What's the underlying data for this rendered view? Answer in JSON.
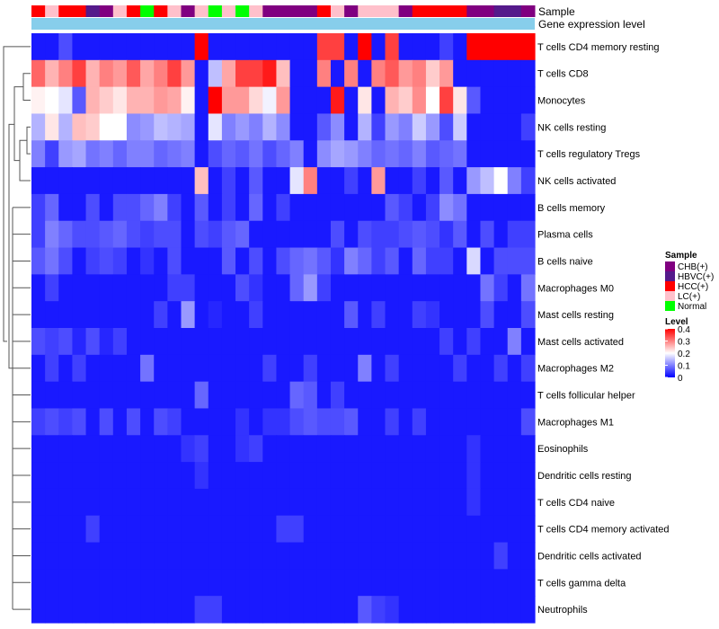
{
  "chart_data": {
    "type": "heatmap",
    "annotation_labels": {
      "sample": "Sample",
      "gene_level": "Gene expression level"
    },
    "row_labels": [
      "T cells CD4 memory resting",
      "T cells CD8",
      "Monocytes",
      "NK cells resting",
      "T cells regulatory  Tregs",
      "NK cells activated",
      "B cells memory",
      "Plasma cells",
      "B cells naive",
      "Macrophages M0",
      "Mast cells resting",
      "Mast cells activated",
      "Macrophages M2",
      "T cells follicular helper",
      "Macrophages M1",
      "Eosinophils",
      "Dendritic cells resting",
      "T cells CD4 naive",
      "T cells CD4 memory activated",
      "Dendritic cells activated",
      "T cells gamma delta",
      "Neutrophils"
    ],
    "sample_groups": [
      "HCC(+)",
      "LC(+)",
      "HCC(+)",
      "HCC(+)",
      "HBVC(+)",
      "CHB(+)",
      "LC(+)",
      "HCC(+)",
      "Normal",
      "HCC(+)",
      "LC(+)",
      "CHB(+)",
      "LC(+)",
      "Normal",
      "LC(+)",
      "Normal",
      "LC(+)",
      "CHB(+)",
      "CHB(+)",
      "CHB(+)",
      "CHB(+)",
      "HCC(+)",
      "LC(+)",
      "CHB(+)",
      "LC(+)",
      "LC(+)",
      "LC(+)",
      "CHB(+)",
      "HCC(+)",
      "HCC(+)",
      "HCC(+)",
      "HCC(+)",
      "CHB(+)",
      "CHB(+)",
      "HBVC(+)",
      "HBVC(+)",
      "CHB(+)"
    ],
    "values": [
      [
        0.02,
        0.02,
        0.06,
        0.02,
        0.02,
        0.02,
        0.02,
        0.02,
        0.02,
        0.02,
        0.02,
        0.02,
        0.4,
        0.02,
        0.02,
        0.02,
        0.02,
        0.02,
        0.02,
        0.02,
        0.02,
        0.35,
        0.35,
        0.02,
        0.4,
        0.02,
        0.35,
        0.02,
        0.02,
        0.02,
        0.05,
        0.02,
        0.4,
        0.4,
        0.4,
        0.4,
        0.4
      ],
      [
        0.32,
        0.26,
        0.3,
        0.35,
        0.26,
        0.3,
        0.28,
        0.33,
        0.27,
        0.3,
        0.35,
        0.28,
        0.02,
        0.15,
        0.27,
        0.35,
        0.35,
        0.38,
        0.25,
        0.02,
        0.02,
        0.3,
        0.02,
        0.3,
        0.02,
        0.3,
        0.33,
        0.28,
        0.3,
        0.24,
        0.28,
        0.02,
        0.02,
        0.02,
        0.02,
        0.02,
        0.02
      ],
      [
        0.21,
        0.2,
        0.18,
        0.07,
        0.26,
        0.24,
        0.22,
        0.26,
        0.26,
        0.28,
        0.27,
        0.21,
        0.02,
        0.4,
        0.28,
        0.28,
        0.23,
        0.19,
        0.28,
        0.02,
        0.02,
        0.02,
        0.38,
        0.02,
        0.22,
        0.02,
        0.26,
        0.24,
        0.29,
        0.2,
        0.35,
        0.22,
        0.07,
        0.02,
        0.02,
        0.02,
        0.02
      ],
      [
        0.14,
        0.22,
        0.14,
        0.25,
        0.24,
        0.2,
        0.2,
        0.11,
        0.12,
        0.15,
        0.14,
        0.13,
        0.02,
        0.18,
        0.1,
        0.12,
        0.1,
        0.14,
        0.11,
        0.02,
        0.02,
        0.07,
        0.11,
        0.02,
        0.14,
        0.05,
        0.12,
        0.1,
        0.16,
        0.12,
        0.06,
        0.16,
        0.02,
        0.02,
        0.02,
        0.02,
        0.05
      ],
      [
        0.1,
        0.05,
        0.12,
        0.13,
        0.09,
        0.1,
        0.08,
        0.1,
        0.1,
        0.08,
        0.09,
        0.1,
        0.02,
        0.06,
        0.08,
        0.07,
        0.09,
        0.06,
        0.08,
        0.1,
        0.02,
        0.11,
        0.13,
        0.12,
        0.1,
        0.08,
        0.09,
        0.08,
        0.1,
        0.07,
        0.08,
        0.09,
        0.02,
        0.02,
        0.02,
        0.02,
        0.02
      ],
      [
        0.02,
        0.02,
        0.02,
        0.02,
        0.02,
        0.02,
        0.02,
        0.02,
        0.02,
        0.02,
        0.02,
        0.02,
        0.25,
        0.02,
        0.05,
        0.02,
        0.07,
        0.02,
        0.02,
        0.18,
        0.3,
        0.02,
        0.02,
        0.05,
        0.02,
        0.28,
        0.02,
        0.02,
        0.05,
        0.02,
        0.07,
        0.02,
        0.12,
        0.15,
        0.2,
        0.1,
        0.05
      ],
      [
        0.05,
        0.08,
        0.02,
        0.02,
        0.06,
        0.02,
        0.06,
        0.06,
        0.08,
        0.1,
        0.05,
        0.02,
        0.07,
        0.02,
        0.05,
        0.02,
        0.08,
        0.02,
        0.05,
        0.02,
        0.02,
        0.02,
        0.02,
        0.02,
        0.02,
        0.02,
        0.07,
        0.05,
        0.02,
        0.05,
        0.11,
        0.09,
        0.02,
        0.02,
        0.02,
        0.02,
        0.02
      ],
      [
        0.05,
        0.1,
        0.08,
        0.06,
        0.06,
        0.07,
        0.08,
        0.06,
        0.05,
        0.06,
        0.06,
        0.02,
        0.06,
        0.05,
        0.07,
        0.08,
        0.02,
        0.02,
        0.02,
        0.02,
        0.02,
        0.02,
        0.06,
        0.02,
        0.06,
        0.05,
        0.05,
        0.06,
        0.07,
        0.06,
        0.04,
        0.07,
        0.02,
        0.06,
        0.02,
        0.05,
        0.05
      ],
      [
        0.07,
        0.09,
        0.06,
        0.02,
        0.05,
        0.06,
        0.05,
        0.02,
        0.04,
        0.02,
        0.06,
        0.02,
        0.02,
        0.02,
        0.07,
        0.02,
        0.06,
        0.02,
        0.06,
        0.08,
        0.09,
        0.07,
        0.04,
        0.1,
        0.08,
        0.05,
        0.07,
        0.02,
        0.08,
        0.05,
        0.05,
        0.02,
        0.17,
        0.02,
        0.06,
        0.06,
        0.06
      ],
      [
        0.02,
        0.05,
        0.02,
        0.02,
        0.02,
        0.02,
        0.02,
        0.02,
        0.02,
        0.02,
        0.05,
        0.05,
        0.02,
        0.02,
        0.02,
        0.06,
        0.04,
        0.02,
        0.02,
        0.08,
        0.12,
        0.05,
        0.02,
        0.02,
        0.02,
        0.02,
        0.02,
        0.02,
        0.02,
        0.02,
        0.02,
        0.02,
        0.02,
        0.09,
        0.05,
        0.02,
        0.09
      ],
      [
        0.02,
        0.02,
        0.02,
        0.02,
        0.02,
        0.02,
        0.02,
        0.02,
        0.02,
        0.05,
        0.02,
        0.12,
        0.02,
        0.03,
        0.02,
        0.02,
        0.05,
        0.02,
        0.02,
        0.02,
        0.02,
        0.02,
        0.02,
        0.07,
        0.02,
        0.05,
        0.02,
        0.02,
        0.05,
        0.04,
        0.02,
        0.02,
        0.02,
        0.06,
        0.02,
        0.02,
        0.06
      ],
      [
        0.06,
        0.05,
        0.06,
        0.03,
        0.06,
        0.03,
        0.05,
        0.02,
        0.02,
        0.02,
        0.02,
        0.02,
        0.02,
        0.02,
        0.02,
        0.02,
        0.02,
        0.02,
        0.02,
        0.02,
        0.02,
        0.02,
        0.02,
        0.02,
        0.02,
        0.02,
        0.02,
        0.02,
        0.02,
        0.02,
        0.05,
        0.02,
        0.05,
        0.02,
        0.02,
        0.1,
        0.02
      ],
      [
        0.02,
        0.05,
        0.02,
        0.05,
        0.02,
        0.02,
        0.02,
        0.02,
        0.09,
        0.02,
        0.02,
        0.02,
        0.02,
        0.02,
        0.02,
        0.02,
        0.02,
        0.05,
        0.02,
        0.02,
        0.05,
        0.02,
        0.02,
        0.02,
        0.1,
        0.02,
        0.05,
        0.02,
        0.02,
        0.02,
        0.02,
        0.05,
        0.02,
        0.02,
        0.05,
        0.02,
        0.05
      ],
      [
        0.02,
        0.02,
        0.02,
        0.02,
        0.02,
        0.02,
        0.02,
        0.02,
        0.02,
        0.02,
        0.02,
        0.02,
        0.08,
        0.02,
        0.02,
        0.02,
        0.02,
        0.02,
        0.02,
        0.08,
        0.07,
        0.02,
        0.05,
        0.02,
        0.02,
        0.02,
        0.02,
        0.02,
        0.02,
        0.02,
        0.02,
        0.02,
        0.02,
        0.02,
        0.02,
        0.02,
        0.02
      ],
      [
        0.05,
        0.06,
        0.05,
        0.06,
        0.02,
        0.06,
        0.02,
        0.06,
        0.02,
        0.06,
        0.05,
        0.02,
        0.02,
        0.02,
        0.02,
        0.04,
        0.02,
        0.04,
        0.04,
        0.06,
        0.07,
        0.06,
        0.06,
        0.07,
        0.02,
        0.02,
        0.05,
        0.02,
        0.05,
        0.02,
        0.02,
        0.02,
        0.02,
        0.02,
        0.02,
        0.02,
        0.06
      ],
      [
        0.02,
        0.02,
        0.02,
        0.02,
        0.02,
        0.02,
        0.02,
        0.02,
        0.02,
        0.02,
        0.02,
        0.04,
        0.05,
        0.02,
        0.02,
        0.04,
        0.05,
        0.02,
        0.02,
        0.02,
        0.02,
        0.02,
        0.02,
        0.02,
        0.02,
        0.02,
        0.02,
        0.02,
        0.02,
        0.02,
        0.02,
        0.02,
        0.04,
        0.02,
        0.02,
        0.02,
        0.02
      ],
      [
        0.02,
        0.02,
        0.02,
        0.02,
        0.02,
        0.02,
        0.02,
        0.02,
        0.02,
        0.02,
        0.02,
        0.02,
        0.04,
        0.02,
        0.02,
        0.02,
        0.02,
        0.02,
        0.02,
        0.02,
        0.02,
        0.02,
        0.02,
        0.02,
        0.02,
        0.02,
        0.02,
        0.02,
        0.02,
        0.02,
        0.02,
        0.02,
        0.04,
        0.02,
        0.02,
        0.02,
        0.02
      ],
      [
        0.02,
        0.02,
        0.02,
        0.02,
        0.02,
        0.02,
        0.02,
        0.02,
        0.02,
        0.02,
        0.02,
        0.02,
        0.02,
        0.02,
        0.02,
        0.02,
        0.02,
        0.02,
        0.02,
        0.02,
        0.02,
        0.02,
        0.02,
        0.02,
        0.02,
        0.02,
        0.02,
        0.02,
        0.02,
        0.02,
        0.02,
        0.02,
        0.04,
        0.02,
        0.02,
        0.02,
        0.02
      ],
      [
        0.02,
        0.02,
        0.02,
        0.02,
        0.05,
        0.02,
        0.02,
        0.02,
        0.02,
        0.02,
        0.02,
        0.02,
        0.02,
        0.02,
        0.02,
        0.02,
        0.02,
        0.02,
        0.05,
        0.05,
        0.02,
        0.02,
        0.02,
        0.02,
        0.02,
        0.02,
        0.02,
        0.02,
        0.02,
        0.02,
        0.02,
        0.02,
        0.02,
        0.02,
        0.02,
        0.02,
        0.02
      ],
      [
        0.02,
        0.02,
        0.02,
        0.02,
        0.02,
        0.02,
        0.02,
        0.02,
        0.02,
        0.02,
        0.02,
        0.02,
        0.02,
        0.02,
        0.02,
        0.02,
        0.02,
        0.02,
        0.02,
        0.02,
        0.02,
        0.02,
        0.02,
        0.02,
        0.02,
        0.02,
        0.02,
        0.02,
        0.02,
        0.02,
        0.02,
        0.02,
        0.02,
        0.02,
        0.05,
        0.02,
        0.02
      ],
      [
        0.02,
        0.02,
        0.02,
        0.02,
        0.02,
        0.02,
        0.02,
        0.02,
        0.02,
        0.02,
        0.02,
        0.02,
        0.02,
        0.02,
        0.02,
        0.02,
        0.02,
        0.02,
        0.02,
        0.02,
        0.02,
        0.02,
        0.02,
        0.02,
        0.02,
        0.02,
        0.02,
        0.02,
        0.02,
        0.02,
        0.02,
        0.02,
        0.02,
        0.02,
        0.02,
        0.02,
        0.02
      ],
      [
        0.02,
        0.02,
        0.02,
        0.02,
        0.02,
        0.02,
        0.02,
        0.02,
        0.02,
        0.02,
        0.02,
        0.02,
        0.05,
        0.05,
        0.02,
        0.02,
        0.02,
        0.02,
        0.02,
        0.02,
        0.02,
        0.02,
        0.02,
        0.02,
        0.07,
        0.05,
        0.04,
        0.02,
        0.02,
        0.02,
        0.02,
        0.02,
        0.02,
        0.02,
        0.02,
        0.02,
        0.02
      ]
    ],
    "legend": {
      "sample_title": "Sample",
      "sample_entries": [
        {
          "label": "CHB(+)",
          "color": "#800080"
        },
        {
          "label": "HBVC(+)",
          "color": "#551A8B"
        },
        {
          "label": "HCC(+)",
          "color": "#FF0000"
        },
        {
          "label": "LC(+)",
          "color": "#FFC0CB"
        },
        {
          "label": "Normal",
          "color": "#00FF00"
        }
      ],
      "level_title": "Level",
      "level_ticks": [
        0.4,
        0.3,
        0.2,
        0.1,
        0
      ],
      "color_low": "#0000FF",
      "color_mid": "#FFFFFF",
      "color_high": "#FF0000",
      "value_min": 0,
      "value_mid": 0.2,
      "value_max": 0.4
    },
    "gene_level_color": "#87CEEB"
  }
}
